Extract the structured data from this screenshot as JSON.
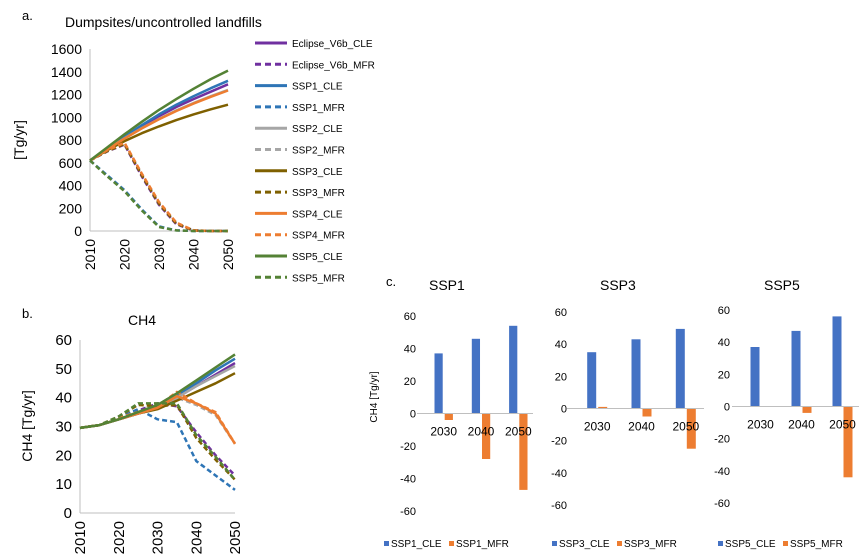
{
  "colors": {
    "Eclipse_V6b": "#7030A0",
    "SSP1": "#2E75B6",
    "SSP2": "#A6A6A6",
    "SSP3": "#7F6000",
    "SSP4": "#ED7D31",
    "SSP5": "#548235",
    "bar_cle": "#4472C4",
    "bar_mfr": "#ED7D31"
  },
  "panel_a": {
    "label": "a.",
    "title": "Dumpsites/uncontrolled landfills",
    "ylabel": "[Tg/yr]",
    "ylim": [
      0,
      1600
    ],
    "yticks": [
      "0",
      "200",
      "400",
      "600",
      "800",
      "1000",
      "1200",
      "1400",
      "1600"
    ],
    "xticks": [
      "2010",
      "2020",
      "2030",
      "2040",
      "2050"
    ],
    "legend": [
      {
        "name": "Eclipse_V6b_CLE",
        "color": "#7030A0",
        "dash": false
      },
      {
        "name": "Eclipse_V6b_MFR",
        "color": "#7030A0",
        "dash": true
      },
      {
        "name": "SSP1_CLE",
        "color": "#2E75B6",
        "dash": false
      },
      {
        "name": "SSP1_MFR",
        "color": "#2E75B6",
        "dash": true
      },
      {
        "name": "SSP2_CLE",
        "color": "#A6A6A6",
        "dash": false
      },
      {
        "name": "SSP2_MFR",
        "color": "#A6A6A6",
        "dash": true
      },
      {
        "name": "SSP3_CLE",
        "color": "#7F6000",
        "dash": false
      },
      {
        "name": "SSP3_MFR",
        "color": "#7F6000",
        "dash": true
      },
      {
        "name": "SSP4_CLE",
        "color": "#ED7D31",
        "dash": false
      },
      {
        "name": "SSP4_MFR",
        "color": "#ED7D31",
        "dash": true
      },
      {
        "name": "SSP5_CLE",
        "color": "#548235",
        "dash": false
      },
      {
        "name": "SSP5_MFR",
        "color": "#548235",
        "dash": true
      }
    ]
  },
  "panel_b": {
    "label": "b.",
    "title": "CH4",
    "ylabel": "CH4 [Tg/yr]",
    "ylim": [
      0,
      60
    ],
    "yticks": [
      "0",
      "10",
      "20",
      "30",
      "40",
      "50",
      "60"
    ],
    "xticks": [
      "2010",
      "2020",
      "2030",
      "2040",
      "2050"
    ]
  },
  "panel_c": {
    "label": "c.",
    "ylabel": "CH4 [Tg/yr]",
    "categories": [
      "2030",
      "2040",
      "2050"
    ],
    "yticks": [
      "-60",
      "-40",
      "-20",
      "0",
      "20",
      "40",
      "60"
    ],
    "groups": [
      {
        "title": "SSP1",
        "legend_cle": "SSP1_CLE",
        "legend_mfr": "SSP1_MFR"
      },
      {
        "title": "SSP3",
        "legend_cle": "SSP3_CLE",
        "legend_mfr": "SSP3_MFR"
      },
      {
        "title": "SSP5",
        "legend_cle": "SSP5_CLE",
        "legend_mfr": "SSP5_MFR"
      }
    ]
  },
  "chart_data": [
    {
      "type": "line",
      "title": "Dumpsites/uncontrolled landfills",
      "ylabel": "[Tg/yr]",
      "xlim": [
        2010,
        2050
      ],
      "ylim": [
        0,
        1600
      ],
      "x": [
        2010,
        2015,
        2020,
        2025,
        2030,
        2035,
        2040,
        2045,
        2050
      ],
      "series": [
        {
          "name": "Eclipse_V6b_CLE",
          "color": "#7030A0",
          "dash": false,
          "values": [
            620,
            720,
            820,
            920,
            1010,
            1090,
            1160,
            1225,
            1290
          ]
        },
        {
          "name": "Eclipse_V6b_MFR",
          "color": "#7030A0",
          "dash": true,
          "values": [
            620,
            700,
            760,
            480,
            230,
            60,
            5,
            0,
            0
          ]
        },
        {
          "name": "SSP1_CLE",
          "color": "#2E75B6",
          "dash": false,
          "values": [
            620,
            725,
            830,
            930,
            1025,
            1110,
            1185,
            1255,
            1320
          ]
        },
        {
          "name": "SSP1_MFR",
          "color": "#2E75B6",
          "dash": true,
          "values": [
            620,
            490,
            360,
            190,
            40,
            5,
            0,
            0,
            0
          ]
        },
        {
          "name": "SSP2_CLE",
          "color": "#A6A6A6",
          "dash": false,
          "values": [
            620,
            718,
            815,
            905,
            985,
            1060,
            1125,
            1185,
            1240
          ]
        },
        {
          "name": "SSP2_MFR",
          "color": "#A6A6A6",
          "dash": true,
          "values": [
            620,
            705,
            770,
            500,
            250,
            70,
            5,
            0,
            0
          ]
        },
        {
          "name": "SSP3_CLE",
          "color": "#7F6000",
          "dash": false,
          "values": [
            620,
            710,
            790,
            860,
            920,
            975,
            1025,
            1070,
            1110
          ]
        },
        {
          "name": "SSP3_MFR",
          "color": "#7F6000",
          "dash": true,
          "values": [
            620,
            702,
            765,
            490,
            240,
            65,
            5,
            0,
            0
          ]
        },
        {
          "name": "SSP4_CLE",
          "color": "#ED7D31",
          "dash": false,
          "values": [
            620,
            717,
            812,
            902,
            982,
            1055,
            1120,
            1180,
            1235
          ]
        },
        {
          "name": "SSP4_MFR",
          "color": "#ED7D31",
          "dash": true,
          "values": [
            620,
            710,
            775,
            505,
            255,
            75,
            5,
            0,
            0
          ]
        },
        {
          "name": "SSP5_CLE",
          "color": "#548235",
          "dash": false,
          "values": [
            620,
            735,
            850,
            960,
            1065,
            1160,
            1250,
            1335,
            1410
          ]
        },
        {
          "name": "SSP5_MFR",
          "color": "#548235",
          "dash": true,
          "values": [
            620,
            480,
            350,
            180,
            35,
            5,
            0,
            0,
            0
          ]
        }
      ]
    },
    {
      "type": "line",
      "title": "CH4",
      "ylabel": "CH4 [Tg/yr]",
      "xlim": [
        2010,
        2050
      ],
      "ylim": [
        0,
        60
      ],
      "x": [
        2010,
        2015,
        2020,
        2025,
        2030,
        2035,
        2040,
        2045,
        2050
      ],
      "series": [
        {
          "name": "Eclipse_V6b_CLE",
          "color": "#7030A0",
          "dash": false,
          "values": [
            29.5,
            30.5,
            32.5,
            34.5,
            36.5,
            40,
            44,
            48,
            52
          ]
        },
        {
          "name": "Eclipse_V6b_MFR",
          "color": "#7030A0",
          "dash": true,
          "values": [
            29.5,
            30.5,
            33,
            35.5,
            38,
            37,
            28,
            20,
            13
          ]
        },
        {
          "name": "SSP1_CLE",
          "color": "#2E75B6",
          "dash": false,
          "values": [
            29.5,
            30.5,
            32.5,
            34.5,
            36.5,
            40.5,
            45,
            49.5,
            53.5
          ]
        },
        {
          "name": "SSP1_MFR",
          "color": "#2E75B6",
          "dash": true,
          "values": [
            29.5,
            30.5,
            33,
            36,
            32.5,
            31.5,
            18,
            13,
            8
          ]
        },
        {
          "name": "SSP2_CLE",
          "color": "#A6A6A6",
          "dash": false,
          "values": [
            29.5,
            30.5,
            32.5,
            34.5,
            36.5,
            40,
            44,
            47.5,
            51
          ]
        },
        {
          "name": "SSP2_MFR",
          "color": "#A6A6A6",
          "dash": true,
          "values": [
            29.5,
            30.5,
            33,
            35,
            36.5,
            40,
            37.5,
            34,
            24
          ]
        },
        {
          "name": "SSP3_CLE",
          "color": "#7F6000",
          "dash": false,
          "values": [
            29.5,
            30.5,
            32.5,
            34.5,
            36,
            39,
            42,
            45,
            48.5
          ]
        },
        {
          "name": "SSP3_MFR",
          "color": "#7F6000",
          "dash": true,
          "values": [
            29.5,
            30.5,
            33.5,
            37.5,
            37,
            37.5,
            26,
            18.5,
            11.5
          ]
        },
        {
          "name": "SSP4_CLE",
          "color": "#ED7D31",
          "dash": false,
          "values": [
            29.5,
            30.5,
            32.5,
            34.5,
            36.5,
            40.5,
            38,
            34.5,
            24
          ]
        },
        {
          "name": "SSP4_MFR",
          "color": "#ED7D31",
          "dash": true,
          "values": [
            29.5,
            30.5,
            33,
            35,
            37,
            42,
            38,
            35,
            24
          ]
        },
        {
          "name": "SSP5_CLE",
          "color": "#548235",
          "dash": false,
          "values": [
            29.5,
            30.5,
            32.5,
            35,
            37.5,
            41.5,
            46,
            50.5,
            55
          ]
        },
        {
          "name": "SSP5_MFR",
          "color": "#548235",
          "dash": true,
          "values": [
            29.5,
            30.5,
            33.5,
            38,
            38,
            38,
            27,
            19.5,
            11.5
          ]
        }
      ]
    },
    {
      "type": "bar",
      "title": "SSP1",
      "ylabel": "CH4 [Tg/yr]",
      "ylim": [
        -60,
        60
      ],
      "categories": [
        "2030",
        "2040",
        "2050"
      ],
      "series": [
        {
          "name": "SSP1_CLE",
          "color": "#4472C4",
          "values": [
            37,
            46,
            54
          ]
        },
        {
          "name": "SSP1_MFR",
          "color": "#ED7D31",
          "values": [
            -4,
            -28,
            -47
          ]
        }
      ]
    },
    {
      "type": "bar",
      "title": "SSP3",
      "ylim": [
        -60,
        60
      ],
      "categories": [
        "2030",
        "2040",
        "2050"
      ],
      "series": [
        {
          "name": "SSP3_CLE",
          "color": "#4472C4",
          "values": [
            35,
            43,
            49.5
          ]
        },
        {
          "name": "SSP3_MFR",
          "color": "#ED7D31",
          "values": [
            1,
            -5,
            -25
          ]
        }
      ]
    },
    {
      "type": "bar",
      "title": "SSP5",
      "ylim": [
        -60,
        60
      ],
      "categories": [
        "2030",
        "2040",
        "2050"
      ],
      "series": [
        {
          "name": "SSP5_CLE",
          "color": "#4472C4",
          "values": [
            37,
            47,
            56
          ]
        },
        {
          "name": "SSP5_MFR",
          "color": "#ED7D31",
          "values": [
            0,
            -4,
            -44
          ]
        }
      ]
    }
  ]
}
